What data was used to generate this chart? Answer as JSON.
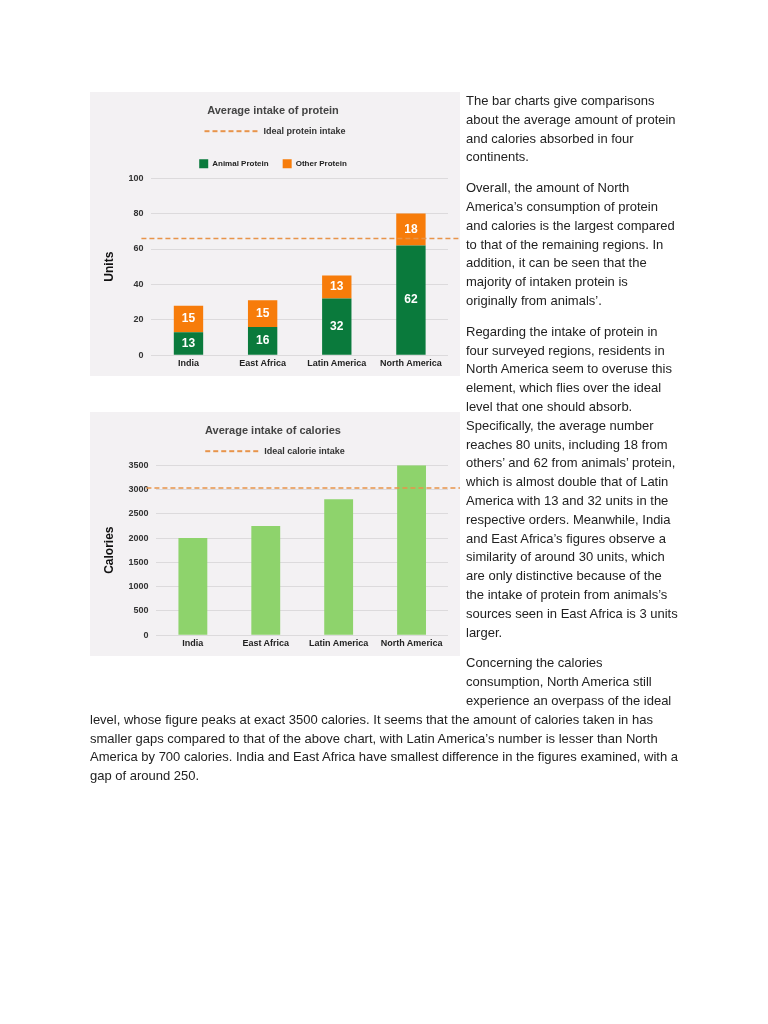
{
  "chart_data": [
    {
      "type": "bar",
      "title": "Average intake of protein",
      "ylabel": "Units",
      "categories": [
        "India",
        "East Africa",
        "Latin America",
        "North America"
      ],
      "stacked": true,
      "series": [
        {
          "name": "Animal Protein",
          "color": "#0a7a3c",
          "values": [
            13,
            16,
            32,
            62
          ]
        },
        {
          "name": "Other Protein",
          "color": "#f77c0a",
          "values": [
            15,
            15,
            13,
            18
          ]
        }
      ],
      "ylim": [
        0,
        100
      ],
      "yticks": [
        0,
        20,
        40,
        60,
        80,
        100
      ],
      "grid": "y",
      "legend": "top",
      "data_labels": true,
      "ref_lines": [
        {
          "axis": "y",
          "value": 66,
          "label": "Ideal protein intake",
          "color": "#e8944a",
          "line_style": "dashed"
        }
      ]
    },
    {
      "type": "bar",
      "title": "Average intake of calories",
      "ylabel": "Calories",
      "categories": [
        "India",
        "East Africa",
        "Latin America",
        "North America"
      ],
      "values": [
        2000,
        2250,
        2800,
        3500
      ],
      "color": "#8ed36c",
      "ylim": [
        0,
        3500
      ],
      "yticks": [
        0,
        500,
        1000,
        1500,
        2000,
        2500,
        3000,
        3500
      ],
      "grid": "y",
      "ref_lines": [
        {
          "axis": "y",
          "value": 3030,
          "label": "Ideal calorie intake",
          "color": "#e8944a",
          "line_style": "dashed"
        }
      ]
    },
    {
      "type": "other",
      "annotations": [
        "The bar charts give comparisons about the average amount of protein and calories absorbed in four continents.",
        "Overall, the amount of North America’s consumption of protein and calories is the largest compared to that of the remaining regions. In addition, it can be seen that the majority of intaken protein is originally from animals’.",
        "Regarding the intake of protein in four surveyed regions, residents in North America seem to overuse this element, which flies over the ideal level that one should absorb. Specifically, the average number reaches 80 units, including 18 from others’ and 62 from animals’ protein, which is almost double that of Latin America with 13 and 32 units in the respective orders. Meanwhile, India and East Africa’s figures observe a similarity of around 30 units, which are only distinctive because of the the intake of protein from animals’s sources seen in East Africa is 3 units larger.",
        "Concerning the calories consumption, North America still experience an overpass of the ideal level, whose figure peaks at exact 3500 calories. It seems that the amount of calories taken in has smaller gaps compared to that of the above chart, with Latin America’s number is lesser than North America by 700 calories. India and East Africa have smallest difference in the figures examined, with a gap of around 250."
      ]
    }
  ]
}
